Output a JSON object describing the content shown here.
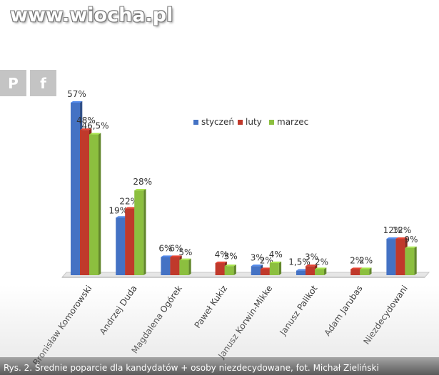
{
  "watermark": "www.wiocha.pl",
  "share": {
    "pinterest_label": "P",
    "facebook_label": "f"
  },
  "caption": "Rys. 2. Średnie poparcie dla kandydatów + osoby niezdecydowane, fot. Michał Zieliński",
  "colors": {
    "styczen": "#4472c4",
    "luty": "#c0392b",
    "marzec": "#8cbf3f"
  },
  "chart_data": {
    "type": "bar",
    "categories": [
      "Bronisław Komorowski",
      "Andrzej Duda",
      "Magdalena Ogórek",
      "Paweł Kukiz",
      "Janusz Korwin-Mikke",
      "Janusz Palikot",
      "Adam Jarubas",
      "Niezdecydowani"
    ],
    "series": [
      {
        "name": "styczeń",
        "values": [
          57,
          19,
          6,
          null,
          3,
          1.5,
          null,
          12
        ],
        "labels": [
          "57%",
          "19%",
          "6%",
          "",
          "3%",
          "1,5%",
          "",
          "12%"
        ]
      },
      {
        "name": "luty",
        "values": [
          48,
          22,
          6,
          4,
          2,
          3,
          2,
          12
        ],
        "labels": [
          "48%",
          "22%",
          "6%",
          "4%",
          "2%",
          "3%",
          "2%",
          "12%"
        ]
      },
      {
        "name": "marzec",
        "values": [
          46.5,
          28,
          5,
          3,
          4,
          2,
          2,
          9
        ],
        "labels": [
          "46,5%",
          "28%",
          "5%",
          "3%",
          "4%",
          "2%",
          "2%",
          "9%"
        ]
      }
    ],
    "legend_position": "top-right",
    "ylim": [
      0,
      60
    ],
    "grid": false
  }
}
